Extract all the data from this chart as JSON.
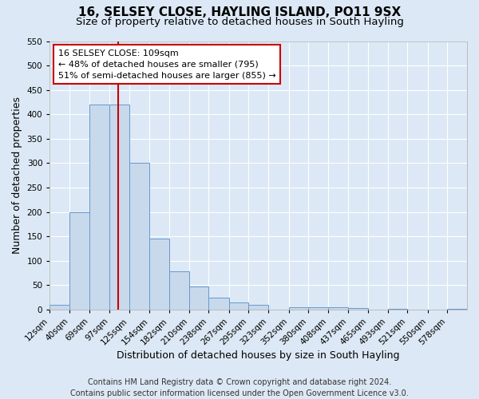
{
  "title": "16, SELSEY CLOSE, HAYLING ISLAND, PO11 9SX",
  "subtitle": "Size of property relative to detached houses in South Hayling",
  "xlabel": "Distribution of detached houses by size in South Hayling",
  "ylabel": "Number of detached properties",
  "bin_labels": [
    "12sqm",
    "40sqm",
    "69sqm",
    "97sqm",
    "125sqm",
    "154sqm",
    "182sqm",
    "210sqm",
    "238sqm",
    "267sqm",
    "295sqm",
    "323sqm",
    "352sqm",
    "380sqm",
    "408sqm",
    "437sqm",
    "465sqm",
    "493sqm",
    "521sqm",
    "550sqm",
    "578sqm"
  ],
  "bin_edges": [
    12,
    40,
    69,
    97,
    125,
    154,
    182,
    210,
    238,
    267,
    295,
    323,
    352,
    380,
    408,
    437,
    465,
    493,
    521,
    550,
    578,
    606
  ],
  "bar_heights": [
    10,
    200,
    420,
    420,
    300,
    145,
    78,
    48,
    25,
    14,
    10,
    0,
    5,
    5,
    5,
    3,
    0,
    2,
    0,
    0,
    2
  ],
  "bar_color": "#c8d9ec",
  "bar_edge_color": "#6699cc",
  "property_line_x": 109,
  "annotation_text_line1": "16 SELSEY CLOSE: 109sqm",
  "annotation_text_line2": "← 48% of detached houses are smaller (795)",
  "annotation_text_line3": "51% of semi-detached houses are larger (855) →",
  "annotation_box_facecolor": "#ffffff",
  "annotation_box_edgecolor": "#cc0000",
  "property_line_color": "#cc0000",
  "ylim": [
    0,
    550
  ],
  "yticks": [
    0,
    50,
    100,
    150,
    200,
    250,
    300,
    350,
    400,
    450,
    500,
    550
  ],
  "footer_line1": "Contains HM Land Registry data © Crown copyright and database right 2024.",
  "footer_line2": "Contains public sector information licensed under the Open Government Licence v3.0.",
  "background_color": "#dce8f5",
  "title_fontsize": 11,
  "subtitle_fontsize": 9.5,
  "axis_label_fontsize": 9,
  "tick_label_fontsize": 7.5,
  "annotation_fontsize": 8,
  "footer_fontsize": 7
}
